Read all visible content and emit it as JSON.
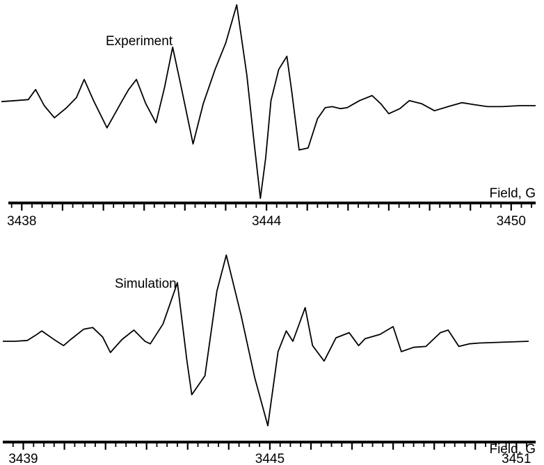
{
  "chart_data": [
    {
      "type": "line",
      "title": "Experiment",
      "xlabel": "Field, G",
      "ylabel": "",
      "xlim": [
        3437.5,
        3450.6
      ],
      "ylim": [
        -1.0,
        1.0
      ],
      "grid": false,
      "tick_labels": [
        "3438",
        "3444",
        "3450"
      ],
      "tick_values": [
        3438,
        3444,
        3450
      ],
      "minor_tick_step": 0.25,
      "series": [
        {
          "x": [
            3437.5,
            3437.83,
            3438.16,
            3438.34,
            3438.55,
            3438.8,
            3439.1,
            3439.34,
            3439.53,
            3439.76,
            3440.09,
            3440.45,
            3440.62,
            3440.81,
            3441.04,
            3441.29,
            3441.5,
            3441.7,
            3441.89,
            3442.2,
            3442.45,
            3442.74,
            3443.0,
            3443.27,
            3443.52,
            3443.7,
            3443.85,
            3443.98,
            3444.11,
            3444.3,
            3444.5,
            3444.62,
            3444.8,
            3445.02,
            3445.25,
            3445.44,
            3445.61,
            3445.81,
            3445.98,
            3446.28,
            3446.59,
            3446.8,
            3447.0,
            3447.27,
            3447.5,
            3447.8,
            3448.12,
            3448.45,
            3448.79,
            3449.1,
            3449.42,
            3449.78,
            3450.2,
            3450.6
          ],
          "y": [
            0.04,
            0.05,
            0.06,
            0.16,
            0.0,
            -0.12,
            -0.02,
            0.08,
            0.26,
            0.05,
            -0.22,
            0.04,
            0.16,
            0.26,
            0.02,
            -0.17,
            0.18,
            0.58,
            0.22,
            -0.38,
            0.02,
            0.36,
            0.62,
            1.0,
            0.3,
            -0.38,
            -0.92,
            -0.52,
            0.05,
            0.36,
            0.49,
            0.14,
            -0.44,
            -0.42,
            -0.13,
            -0.02,
            -0.01,
            -0.03,
            -0.02,
            0.05,
            0.1,
            0.02,
            -0.08,
            -0.03,
            0.05,
            0.02,
            -0.05,
            -0.01,
            0.03,
            0.01,
            -0.01,
            -0.01,
            0.0,
            0.0
          ]
        }
      ]
    },
    {
      "type": "line",
      "title": "Simulation",
      "xlabel": "Field, G",
      "ylabel": "",
      "xlim": [
        3438.5,
        3451.3
      ],
      "ylim": [
        -1.0,
        1.0
      ],
      "grid": false,
      "tick_labels": [
        "3439",
        "3445",
        "3451"
      ],
      "tick_values": [
        3439,
        3445,
        3451
      ],
      "minor_tick_step": 0.25,
      "series": [
        {
          "x": [
            3438.5,
            3438.8,
            3439.1,
            3439.3,
            3439.45,
            3439.78,
            3439.98,
            3440.15,
            3440.47,
            3440.69,
            3440.93,
            3441.12,
            3441.4,
            3441.69,
            3441.96,
            3442.09,
            3442.4,
            3442.75,
            3442.98,
            3443.1,
            3443.42,
            3443.71,
            3443.94,
            3444.3,
            3444.63,
            3444.95,
            3445.2,
            3445.4,
            3445.56,
            3445.86,
            3446.04,
            3446.32,
            3446.61,
            3446.93,
            3447.16,
            3447.32,
            3447.68,
            3448.0,
            3448.2,
            3448.5,
            3448.8,
            3449.15,
            3449.34,
            3449.6,
            3449.85,
            3450.1,
            3451.3
          ],
          "y": [
            0.0,
            0.0,
            0.01,
            0.07,
            0.12,
            0.01,
            -0.05,
            0.02,
            0.14,
            0.16,
            0.05,
            -0.13,
            0.02,
            0.13,
            0.0,
            -0.03,
            0.2,
            0.68,
            -0.22,
            -0.62,
            -0.4,
            0.58,
            1.0,
            0.3,
            -0.42,
            -0.98,
            -0.12,
            0.12,
            0.0,
            0.39,
            -0.05,
            -0.23,
            0.04,
            0.1,
            -0.05,
            0.03,
            0.08,
            0.17,
            -0.12,
            -0.07,
            -0.06,
            0.1,
            0.13,
            -0.06,
            -0.03,
            -0.02,
            0.0
          ]
        }
      ]
    }
  ]
}
